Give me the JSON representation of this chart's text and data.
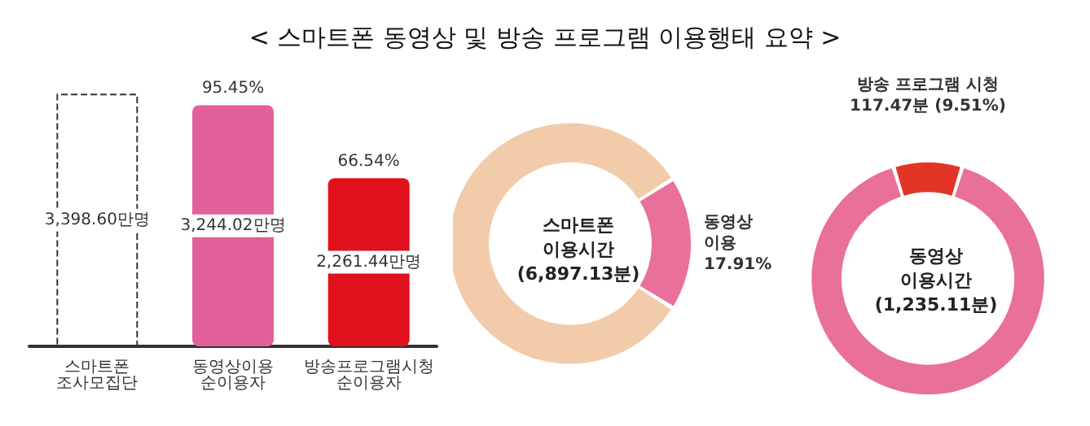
{
  "chart_data": [
    {
      "type": "bar",
      "title": "< 스마트폰 동영상 및 방송 프로그램 이용행태 요약 >",
      "categories": [
        "스마트폰\n조사모집단",
        "동영상이용\n순이용자",
        "방송프로그램시청\n순이용자"
      ],
      "values": [
        3398.6,
        3244.02,
        2261.44
      ],
      "colors": [
        "#333333",
        "#e2609a",
        "#e0101c"
      ],
      "value_labels": [
        "3,398.60만명",
        "3,244.02만명",
        "2,261.44만명"
      ],
      "annotations": [
        {
          "text": "95.45%",
          "x": "동영상이용\n순이용자",
          "y": 3244.02
        },
        {
          "text": "66.54%",
          "x": "방송프로그램시청\n순이용자",
          "y": 2261.44
        }
      ]
    },
    {
      "type": "donut",
      "title": "스마트폰\n이용시간\n(6,897.13분)",
      "categories": [
        "동영상\n이용",
        null
      ],
      "values": [
        17.91,
        82.09
      ],
      "colors": [
        "#e8709a",
        "#f2cbab"
      ],
      "value_labels": [
        "17.91%",
        null
      ]
    },
    {
      "type": "donut",
      "title": "동영상\n이용시간\n(1,235.11분)",
      "categories": [
        "방송 프로그램 시청",
        null
      ],
      "values": [
        9.51,
        90.49
      ],
      "colors": [
        "#e33525",
        "#e8709a"
      ],
      "value_labels": [
        "117.47분 (9.51%)",
        null
      ]
    }
  ]
}
